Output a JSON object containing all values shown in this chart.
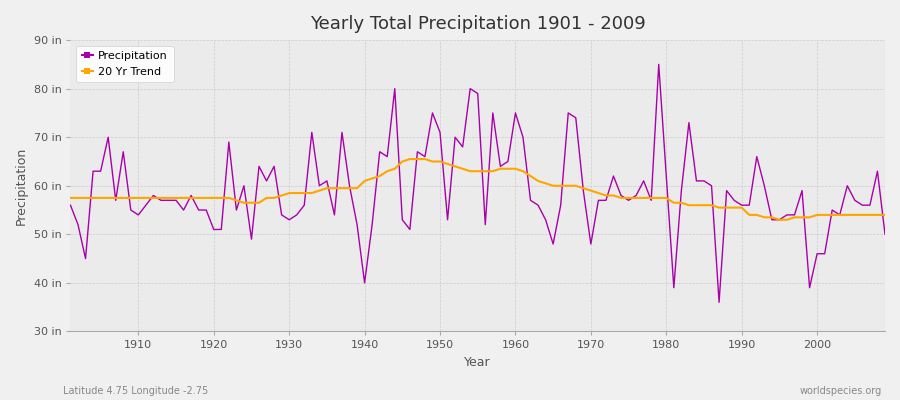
{
  "title": "Yearly Total Precipitation 1901 - 2009",
  "xlabel": "Year",
  "ylabel": "Precipitation",
  "x_label_bottom_left": "Latitude 4.75 Longitude -2.75",
  "x_label_bottom_right": "worldspecies.org",
  "ylim": [
    30,
    90
  ],
  "yticks": [
    30,
    40,
    50,
    60,
    70,
    80,
    90
  ],
  "ytick_labels": [
    "30 in",
    "40 in",
    "50 in",
    "60 in",
    "70 in",
    "80 in",
    "90 in"
  ],
  "bg_color": "#f0f0f0",
  "plot_bg_color": "#ebebeb",
  "precip_color": "#aa00aa",
  "trend_color": "#ffa500",
  "years": [
    1901,
    1902,
    1903,
    1904,
    1905,
    1906,
    1907,
    1908,
    1909,
    1910,
    1911,
    1912,
    1913,
    1914,
    1915,
    1916,
    1917,
    1918,
    1919,
    1920,
    1921,
    1922,
    1923,
    1924,
    1925,
    1926,
    1927,
    1928,
    1929,
    1930,
    1931,
    1932,
    1933,
    1934,
    1935,
    1936,
    1937,
    1938,
    1939,
    1940,
    1941,
    1942,
    1943,
    1944,
    1945,
    1946,
    1947,
    1948,
    1949,
    1950,
    1951,
    1952,
    1953,
    1954,
    1955,
    1956,
    1957,
    1958,
    1959,
    1960,
    1961,
    1962,
    1963,
    1964,
    1965,
    1966,
    1967,
    1968,
    1969,
    1970,
    1971,
    1972,
    1973,
    1974,
    1975,
    1976,
    1977,
    1978,
    1979,
    1980,
    1981,
    1982,
    1983,
    1984,
    1985,
    1986,
    1987,
    1988,
    1989,
    1990,
    1991,
    1992,
    1993,
    1994,
    1995,
    1996,
    1997,
    1998,
    1999,
    2000,
    2001,
    2002,
    2003,
    2004,
    2005,
    2006,
    2007,
    2008,
    2009
  ],
  "precip": [
    56,
    52,
    45,
    63,
    63,
    70,
    57,
    67,
    55,
    54,
    56,
    58,
    57,
    57,
    57,
    55,
    58,
    55,
    55,
    51,
    51,
    69,
    55,
    60,
    49,
    64,
    61,
    64,
    54,
    53,
    54,
    56,
    71,
    60,
    61,
    54,
    71,
    60,
    52,
    40,
    52,
    67,
    66,
    80,
    53,
    51,
    67,
    66,
    75,
    71,
    53,
    70,
    68,
    80,
    79,
    52,
    75,
    64,
    65,
    75,
    70,
    57,
    56,
    53,
    48,
    56,
    75,
    74,
    59,
    48,
    57,
    57,
    62,
    58,
    57,
    58,
    61,
    57,
    85,
    62,
    39,
    59,
    73,
    61,
    61,
    60,
    36,
    59,
    57,
    56,
    56,
    66,
    60,
    53,
    53,
    54,
    54,
    59,
    39,
    46,
    46,
    55,
    54,
    60,
    57,
    56,
    56,
    63,
    50
  ],
  "trend": [
    57.5,
    57.5,
    57.5,
    57.5,
    57.5,
    57.5,
    57.5,
    57.5,
    57.5,
    57.5,
    57.5,
    57.5,
    57.5,
    57.5,
    57.5,
    57.5,
    57.5,
    57.5,
    57.5,
    57.5,
    57.5,
    57.5,
    57.0,
    56.5,
    56.5,
    56.5,
    57.5,
    57.5,
    58.0,
    58.5,
    58.5,
    58.5,
    58.5,
    59.0,
    59.5,
    59.5,
    59.5,
    59.5,
    59.5,
    61.0,
    61.5,
    62.0,
    63.0,
    63.5,
    65.0,
    65.5,
    65.5,
    65.5,
    65.0,
    65.0,
    64.5,
    64.0,
    63.5,
    63.0,
    63.0,
    63.0,
    63.0,
    63.5,
    63.5,
    63.5,
    63.0,
    62.0,
    61.0,
    60.5,
    60.0,
    60.0,
    60.0,
    60.0,
    59.5,
    59.0,
    58.5,
    58.0,
    58.0,
    57.5,
    57.5,
    57.5,
    57.5,
    57.5,
    57.5,
    57.5,
    56.5,
    56.5,
    56.0,
    56.0,
    56.0,
    56.0,
    55.5,
    55.5,
    55.5,
    55.5,
    54.0,
    54.0,
    53.5,
    53.5,
    53.0,
    53.0,
    53.5,
    53.5,
    53.5,
    54.0,
    54.0,
    54.0,
    54.0,
    54.0,
    54.0,
    54.0,
    54.0,
    54.0,
    54.0
  ]
}
